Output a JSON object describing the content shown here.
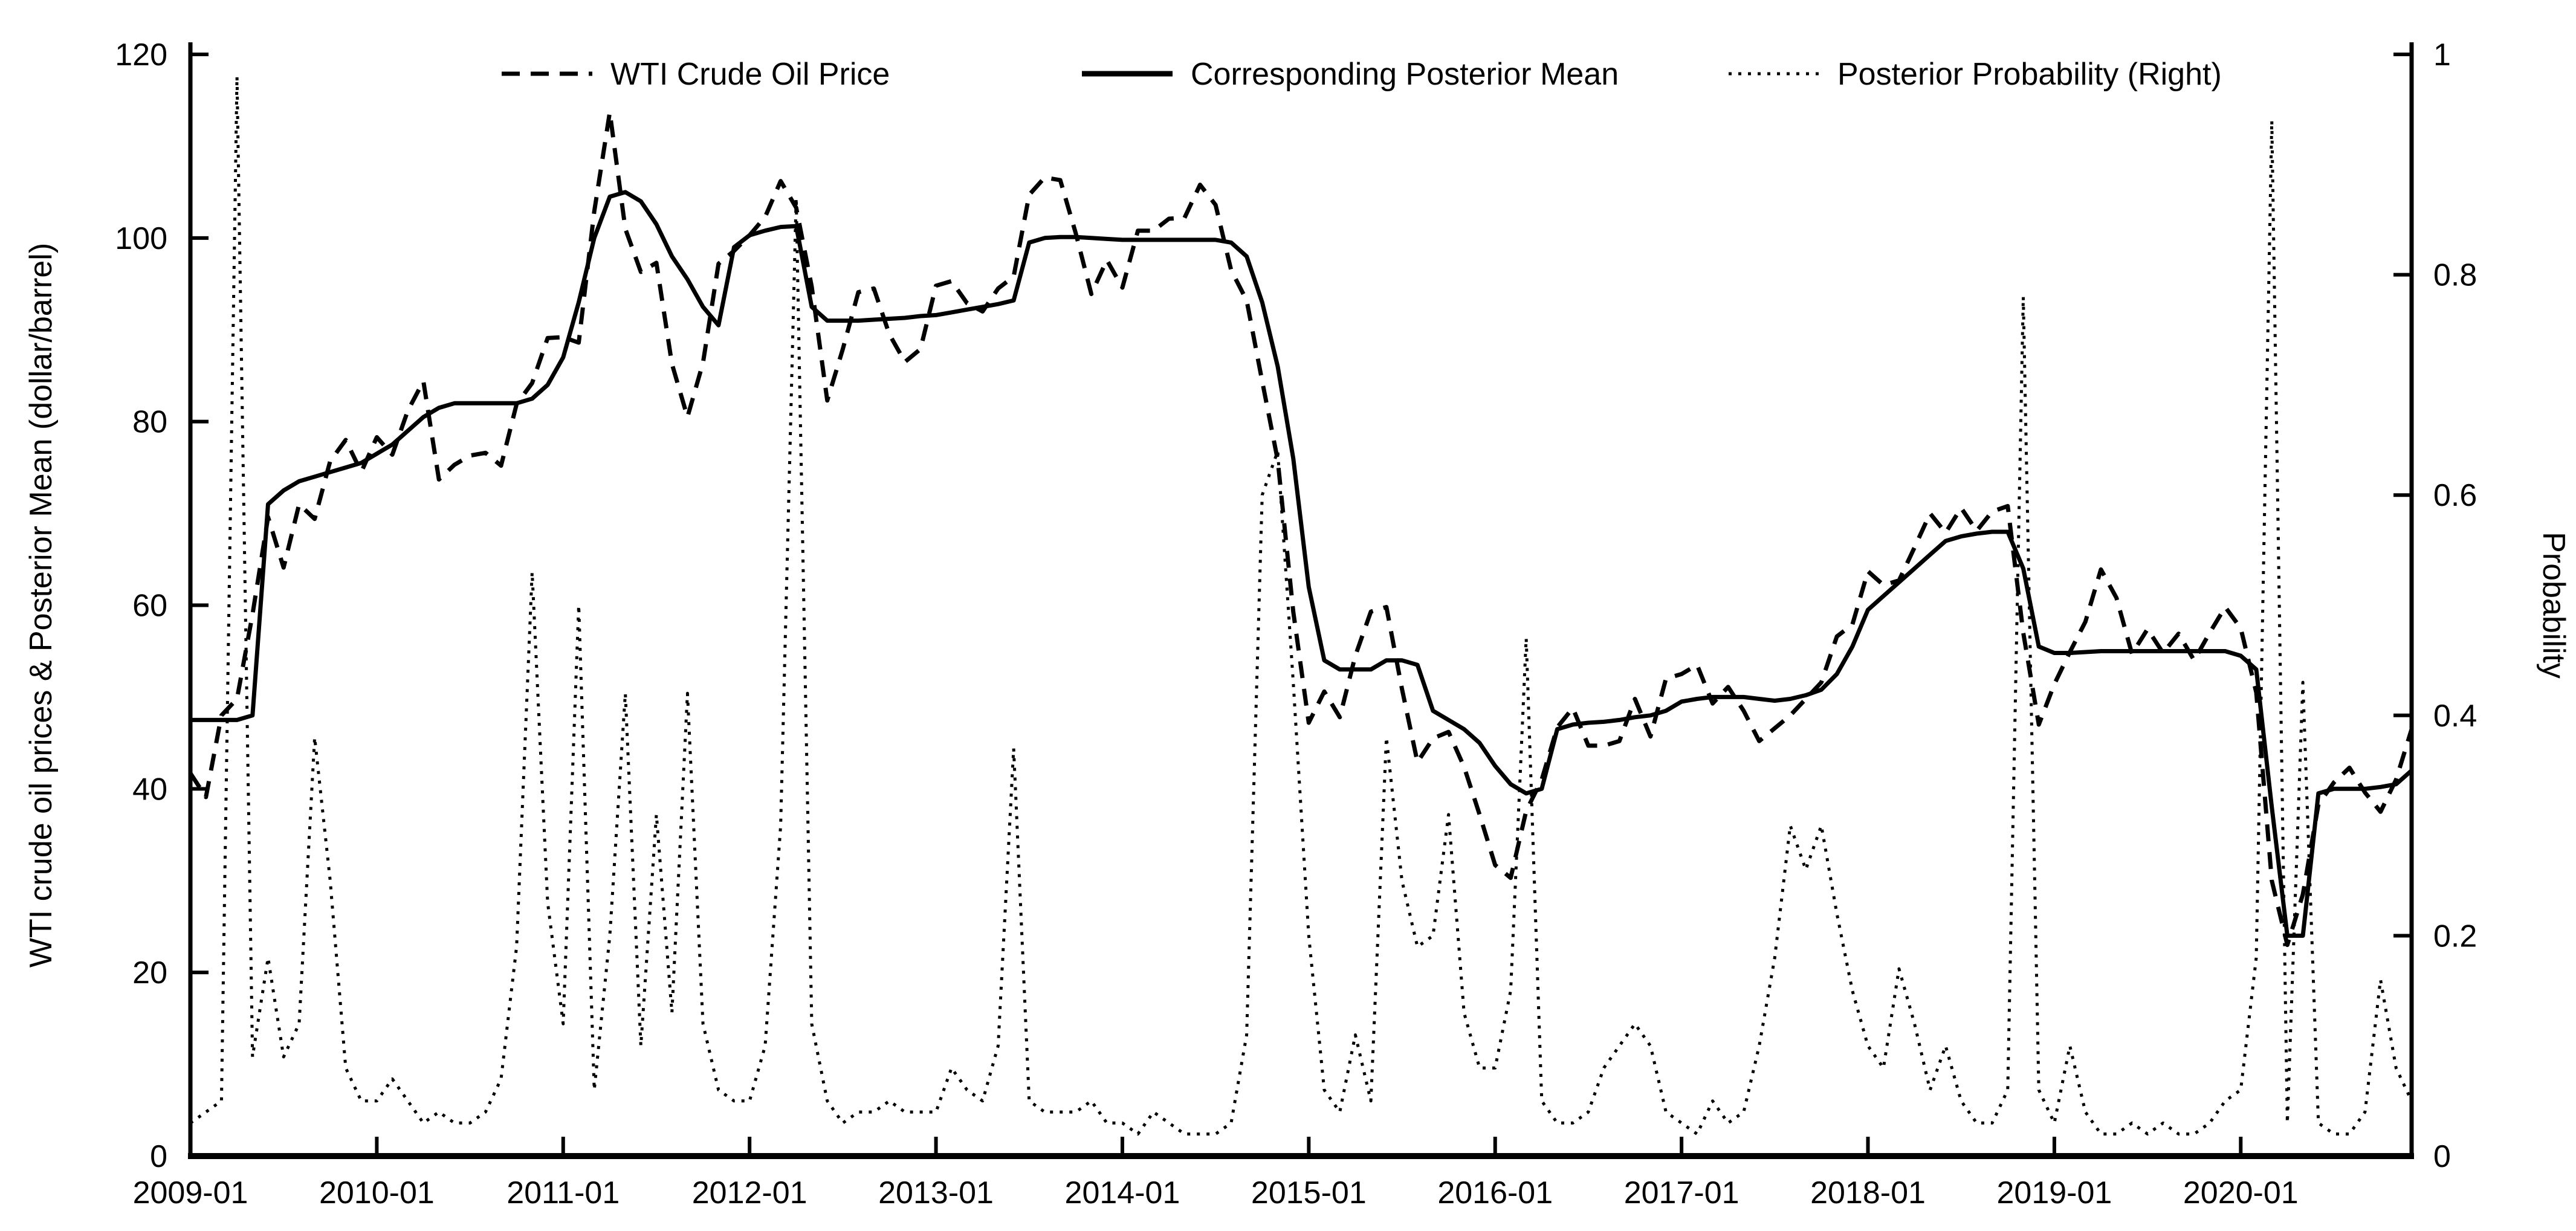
{
  "figure": {
    "background": "#ffffff",
    "line_color": "#000000",
    "text_color": "#000000"
  },
  "chart_data": {
    "type": "line",
    "title": "",
    "grid": false,
    "legend_position": "top",
    "x": [
      "2009-01",
      "2009-02",
      "2009-03",
      "2009-04",
      "2009-05",
      "2009-06",
      "2009-07",
      "2009-08",
      "2009-09",
      "2009-10",
      "2009-11",
      "2009-12",
      "2010-01",
      "2010-02",
      "2010-03",
      "2010-04",
      "2010-05",
      "2010-06",
      "2010-07",
      "2010-08",
      "2010-09",
      "2010-10",
      "2010-11",
      "2010-12",
      "2011-01",
      "2011-02",
      "2011-03",
      "2011-04",
      "2011-05",
      "2011-06",
      "2011-07",
      "2011-08",
      "2011-09",
      "2011-10",
      "2011-11",
      "2011-12",
      "2012-01",
      "2012-02",
      "2012-03",
      "2012-04",
      "2012-05",
      "2012-06",
      "2012-07",
      "2012-08",
      "2012-09",
      "2012-10",
      "2012-11",
      "2012-12",
      "2013-01",
      "2013-02",
      "2013-03",
      "2013-04",
      "2013-05",
      "2013-06",
      "2013-07",
      "2013-08",
      "2013-09",
      "2013-10",
      "2013-11",
      "2013-12",
      "2014-01",
      "2014-02",
      "2014-03",
      "2014-04",
      "2014-05",
      "2014-06",
      "2014-07",
      "2014-08",
      "2014-09",
      "2014-10",
      "2014-11",
      "2014-12",
      "2015-01",
      "2015-02",
      "2015-03",
      "2015-04",
      "2015-05",
      "2015-06",
      "2015-07",
      "2015-08",
      "2015-09",
      "2015-10",
      "2015-11",
      "2015-12",
      "2016-01",
      "2016-02",
      "2016-03",
      "2016-04",
      "2016-05",
      "2016-06",
      "2016-07",
      "2016-08",
      "2016-09",
      "2016-10",
      "2016-11",
      "2016-12",
      "2017-01",
      "2017-02",
      "2017-03",
      "2017-04",
      "2017-05",
      "2017-06",
      "2017-07",
      "2017-08",
      "2017-09",
      "2017-10",
      "2017-11",
      "2017-12",
      "2018-01",
      "2018-02",
      "2018-03",
      "2018-04",
      "2018-05",
      "2018-06",
      "2018-07",
      "2018-08",
      "2018-09",
      "2018-10",
      "2018-11",
      "2018-12",
      "2019-01",
      "2019-02",
      "2019-03",
      "2019-04",
      "2019-05",
      "2019-06",
      "2019-07",
      "2019-08",
      "2019-09",
      "2019-10",
      "2019-11",
      "2019-12",
      "2020-01",
      "2020-02",
      "2020-03",
      "2020-04",
      "2020-05",
      "2020-06",
      "2020-07",
      "2020-08",
      "2020-09",
      "2020-10",
      "2020-11",
      "2020-12"
    ],
    "x_tick_labels": [
      "2009-01",
      "2010-01",
      "2011-01",
      "2012-01",
      "2013-01",
      "2014-01",
      "2015-01",
      "2016-01",
      "2017-01",
      "2018-01",
      "2019-01",
      "2020-01"
    ],
    "x_tick_indices": [
      0,
      12,
      24,
      36,
      48,
      60,
      72,
      84,
      96,
      108,
      120,
      132
    ],
    "left_axis": {
      "label": "WTI crude oil prices & Posterior Mean (dollar/barrel)",
      "min": 0,
      "max": 120,
      "ticks": [
        0,
        20,
        40,
        60,
        80,
        100,
        120
      ],
      "tick_labels": [
        "0",
        "20",
        "40",
        "60",
        "80",
        "100",
        "120"
      ]
    },
    "right_axis": {
      "label": "Probability",
      "min": 0,
      "max": 1,
      "ticks": [
        0,
        0.2,
        0.4,
        0.6,
        0.8,
        1
      ],
      "tick_labels": [
        "0",
        "0.2",
        "0.4",
        "0.6",
        "0.8",
        "1"
      ]
    },
    "series": [
      {
        "name": "WTI Crude Oil Price",
        "axis": "left",
        "style": "dashed",
        "values": [
          41.7,
          39.1,
          48.0,
          49.8,
          59.0,
          69.6,
          64.1,
          71.0,
          69.4,
          75.7,
          78.0,
          74.5,
          78.3,
          76.4,
          81.2,
          84.4,
          73.7,
          75.3,
          76.3,
          76.6,
          75.2,
          81.9,
          84.2,
          89.1,
          89.2,
          88.6,
          102.9,
          113.7,
          101.0,
          96.3,
          97.3,
          86.3,
          80.5,
          86.4,
          97.2,
          98.6,
          100.3,
          102.3,
          106.2,
          103.3,
          94.7,
          82.3,
          87.9,
          94.1,
          94.5,
          89.5,
          86.5,
          87.9,
          94.8,
          95.3,
          92.9,
          92.0,
          94.5,
          95.8,
          104.7,
          106.6,
          106.3,
          100.5,
          93.9,
          97.6,
          94.6,
          100.8,
          100.8,
          102.1,
          102.2,
          105.8,
          103.6,
          96.5,
          93.2,
          84.4,
          75.8,
          59.3,
          47.2,
          50.6,
          47.8,
          54.5,
          59.3,
          59.8,
          50.9,
          42.9,
          45.5,
          46.2,
          42.4,
          37.2,
          31.7,
          30.3,
          37.6,
          41.0,
          46.7,
          48.8,
          44.7,
          44.7,
          45.2,
          49.8,
          45.7,
          52.0,
          52.5,
          53.5,
          49.3,
          51.1,
          48.5,
          45.2,
          46.6,
          48.0,
          49.8,
          51.6,
          56.6,
          57.9,
          63.7,
          62.2,
          62.7,
          66.3,
          70.0,
          67.9,
          70.6,
          68.1,
          70.2,
          70.8,
          57.0,
          47.0,
          51.4,
          54.9,
          58.2,
          63.9,
          60.8,
          54.7,
          57.4,
          54.8,
          56.9,
          54.0,
          57.0,
          59.8,
          57.5,
          50.5,
          30.0,
          23.0,
          28.5,
          38.3,
          40.7,
          42.3,
          39.6,
          37.5,
          41.0,
          46.5
        ]
      },
      {
        "name": "Corresponding Posterior Mean",
        "axis": "left",
        "style": "solid",
        "values": [
          47.5,
          47.5,
          47.5,
          47.5,
          48.0,
          71.0,
          72.5,
          73.5,
          74.0,
          74.5,
          75.0,
          75.5,
          76.5,
          77.5,
          79.0,
          80.5,
          81.5,
          82.0,
          82.0,
          82.0,
          82.0,
          82.0,
          82.5,
          84.0,
          87.0,
          93.0,
          100.0,
          104.5,
          105.0,
          104.0,
          101.5,
          98.0,
          95.5,
          92.5,
          90.5,
          99.0,
          100.3,
          100.8,
          101.2,
          101.3,
          92.5,
          91.0,
          91.0,
          91.0,
          91.1,
          91.2,
          91.3,
          91.5,
          91.6,
          91.9,
          92.2,
          92.5,
          92.8,
          93.2,
          99.5,
          100.0,
          100.1,
          100.1,
          100.0,
          99.9,
          99.8,
          99.8,
          99.8,
          99.8,
          99.8,
          99.8,
          99.8,
          99.5,
          98.0,
          93.0,
          86.0,
          76.0,
          62.0,
          54.0,
          53.0,
          53.0,
          53.0,
          54.0,
          54.0,
          53.5,
          48.5,
          47.5,
          46.5,
          45.0,
          42.5,
          40.5,
          39.5,
          40.0,
          46.5,
          47.0,
          47.2,
          47.3,
          47.5,
          47.8,
          48.0,
          48.5,
          49.5,
          49.8,
          50.0,
          50.0,
          50.0,
          49.8,
          49.6,
          49.8,
          50.2,
          50.8,
          52.5,
          55.5,
          59.5,
          61.0,
          62.5,
          64.0,
          65.5,
          67.0,
          67.5,
          67.8,
          68.0,
          68.0,
          64.0,
          55.5,
          54.8,
          54.8,
          54.9,
          55.0,
          55.0,
          55.0,
          55.0,
          55.0,
          55.0,
          55.0,
          55.0,
          55.0,
          54.5,
          53.0,
          38.0,
          24.0,
          24.0,
          39.5,
          40.0,
          40.0,
          40.0,
          40.2,
          40.5,
          42.0
        ]
      },
      {
        "name": "Posterior Probability (Right)",
        "axis": "right",
        "style": "dotted",
        "values": [
          0.03,
          0.04,
          0.05,
          0.98,
          0.09,
          0.18,
          0.09,
          0.12,
          0.38,
          0.25,
          0.08,
          0.05,
          0.05,
          0.07,
          0.05,
          0.03,
          0.04,
          0.03,
          0.03,
          0.04,
          0.07,
          0.19,
          0.53,
          0.23,
          0.12,
          0.5,
          0.06,
          0.2,
          0.42,
          0.1,
          0.31,
          0.13,
          0.42,
          0.12,
          0.06,
          0.05,
          0.05,
          0.1,
          0.3,
          0.87,
          0.12,
          0.05,
          0.03,
          0.04,
          0.04,
          0.05,
          0.04,
          0.04,
          0.04,
          0.08,
          0.06,
          0.05,
          0.1,
          0.37,
          0.05,
          0.04,
          0.04,
          0.04,
          0.05,
          0.03,
          0.03,
          0.02,
          0.04,
          0.03,
          0.02,
          0.02,
          0.02,
          0.03,
          0.11,
          0.6,
          0.64,
          0.43,
          0.2,
          0.06,
          0.04,
          0.11,
          0.05,
          0.38,
          0.25,
          0.19,
          0.2,
          0.31,
          0.13,
          0.08,
          0.08,
          0.15,
          0.47,
          0.05,
          0.03,
          0.03,
          0.04,
          0.08,
          0.1,
          0.12,
          0.1,
          0.04,
          0.03,
          0.02,
          0.05,
          0.03,
          0.04,
          0.1,
          0.18,
          0.3,
          0.26,
          0.3,
          0.22,
          0.15,
          0.1,
          0.08,
          0.17,
          0.12,
          0.06,
          0.1,
          0.05,
          0.03,
          0.03,
          0.06,
          0.78,
          0.06,
          0.03,
          0.1,
          0.04,
          0.02,
          0.02,
          0.03,
          0.02,
          0.03,
          0.02,
          0.02,
          0.03,
          0.05,
          0.06,
          0.18,
          0.94,
          0.03,
          0.43,
          0.03,
          0.02,
          0.02,
          0.04,
          0.16,
          0.08,
          0.05
        ]
      }
    ]
  }
}
